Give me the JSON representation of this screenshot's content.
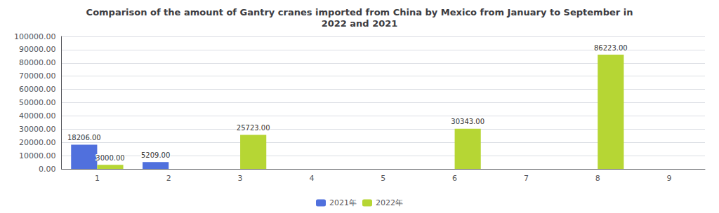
{
  "chart_data": {
    "type": "bar",
    "title": "Comparison of the amount of Gantry cranes imported from China by Mexico from January to September in\n2022 and 2021",
    "categories": [
      "1",
      "2",
      "3",
      "4",
      "5",
      "6",
      "7",
      "8",
      "9"
    ],
    "series": [
      {
        "name": "2021年",
        "values": [
          18206.0,
          5209.0,
          0,
          0,
          0,
          0,
          0,
          0,
          0
        ],
        "value_labels": [
          "18206.00",
          "5209.00",
          null,
          null,
          null,
          null,
          null,
          null,
          null
        ]
      },
      {
        "name": "2022年",
        "values": [
          3000.0,
          0,
          25723.0,
          0,
          0,
          30343.0,
          0,
          86223.0,
          0
        ],
        "value_labels": [
          "3000.00",
          null,
          "25723.00",
          null,
          null,
          "30343.00",
          null,
          "86223.00",
          null
        ]
      }
    ],
    "ylim": [
      0,
      100000
    ],
    "yticks": [
      {
        "value": 0,
        "label": "0.00"
      },
      {
        "value": 10000,
        "label": "10000.00"
      },
      {
        "value": 20000,
        "label": "20000.00"
      },
      {
        "value": 30000,
        "label": "30000.00"
      },
      {
        "value": 40000,
        "label": "40000.00"
      },
      {
        "value": 50000,
        "label": "50000.00"
      },
      {
        "value": 60000,
        "label": "60000.00"
      },
      {
        "value": 70000,
        "label": "70000.00"
      },
      {
        "value": 80000,
        "label": "80000.00"
      },
      {
        "value": 90000,
        "label": "90000.00"
      },
      {
        "value": 100000,
        "label": "100000.00"
      }
    ],
    "grid": true,
    "legend": "bottom",
    "data_labels": true
  }
}
